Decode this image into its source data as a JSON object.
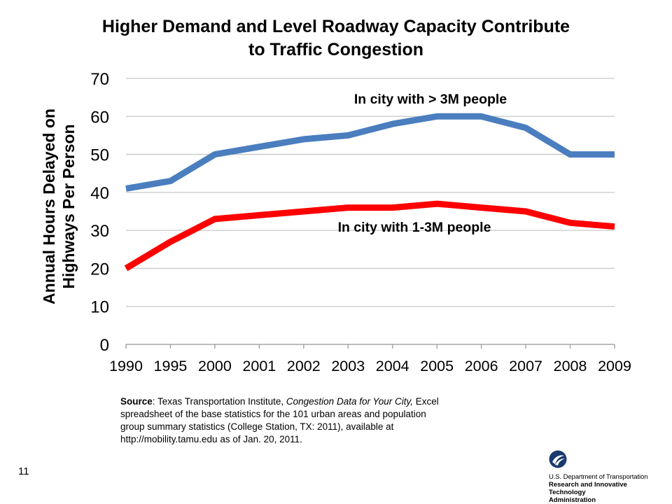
{
  "title": {
    "line1": "Higher Demand and Level Roadway Capacity Contribute",
    "line2": "to Traffic Congestion"
  },
  "chart_data": {
    "type": "line",
    "title": "Higher Demand and Level Roadway Capacity Contribute to Traffic Congestion",
    "ylabel": "Annual Hours Delayed on Highways Per Person",
    "ylabel_lines": [
      "Annual Hours Delayed on",
      "Highways Per Person"
    ],
    "xlabel": "",
    "categories": [
      "1990",
      "1995",
      "2000",
      "2001",
      "2002",
      "2003",
      "2004",
      "2005",
      "2006",
      "2007",
      "2008",
      "2009"
    ],
    "ylim": [
      0,
      70
    ],
    "yticks": [
      0,
      10,
      20,
      30,
      40,
      50,
      60,
      70
    ],
    "grid": true,
    "series": [
      {
        "name": "In city with > 3M people",
        "color": "#4a7ebf",
        "values": [
          41,
          43,
          50,
          52,
          54,
          55,
          58,
          60,
          60,
          57,
          50,
          50
        ]
      },
      {
        "name": "In city with 1-3M people",
        "color": "#ff0000",
        "values": [
          20,
          27,
          33,
          34,
          35,
          36,
          36,
          37,
          36,
          35,
          32,
          31
        ]
      }
    ]
  },
  "source": {
    "label": "Source",
    "text1": ": Texas Transportation Institute, ",
    "italic": "Congestion Data for Your City,",
    "text2": " Excel spreadsheet of the base statistics for the 101 urban areas and population group summary statistics (College Station, TX:  2011), available at http://mobility.tamu.edu as of Jan. 20, 2011."
  },
  "page_number": "11",
  "logo": {
    "line1": "U.S. Department of Transportation",
    "line2": "Research and Innovative Technology",
    "line3": "Administration",
    "color": "#1a3a6e"
  }
}
